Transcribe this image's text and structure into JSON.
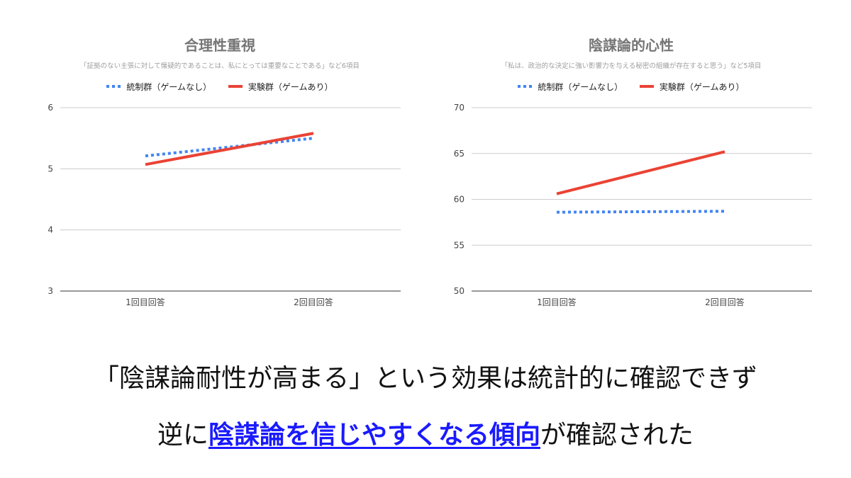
{
  "chart_data": [
    {
      "type": "line",
      "title": "合理性重視",
      "subtitle": "「証拠のない主張に対して懐疑的であることは、私にとっては重要なことである」など6項目",
      "categories": [
        "1回目回答",
        "2回目回答"
      ],
      "ylim": [
        3,
        6
      ],
      "yticks": [
        3,
        4,
        5,
        6
      ],
      "grid": true,
      "legend": "top",
      "series": [
        {
          "name": "統制群（ゲームなし）",
          "values": [
            5.21,
            5.5
          ],
          "color": "#4285f4",
          "style": "dotted"
        },
        {
          "name": "実験群（ゲームあり）",
          "values": [
            5.07,
            5.58
          ],
          "color": "#ea4335",
          "style": "solid"
        }
      ]
    },
    {
      "type": "line",
      "title": "陰謀論的心性",
      "subtitle": "「私は、政治的な決定に強い影響力を与える秘密の組織が存在すると思う」など5項目",
      "categories": [
        "1回目回答",
        "2回目回答"
      ],
      "ylim": [
        50,
        70
      ],
      "yticks": [
        50,
        55,
        60,
        65,
        70
      ],
      "grid": true,
      "legend": "top",
      "series": [
        {
          "name": "統制群（ゲームなし）",
          "values": [
            58.6,
            58.7
          ],
          "color": "#4285f4",
          "style": "dotted"
        },
        {
          "name": "実験群（ゲームあり）",
          "values": [
            60.6,
            65.2
          ],
          "color": "#ea4335",
          "style": "solid"
        }
      ]
    }
  ],
  "caption": {
    "line1": "「陰謀論耐性が高まる」という効果は統計的に確認できず",
    "line2_pre": "逆に",
    "line2_highlight": "陰謀論を信じやすくなる傾向",
    "line2_post": "が確認された",
    "highlight_color": "#1a1aff"
  }
}
